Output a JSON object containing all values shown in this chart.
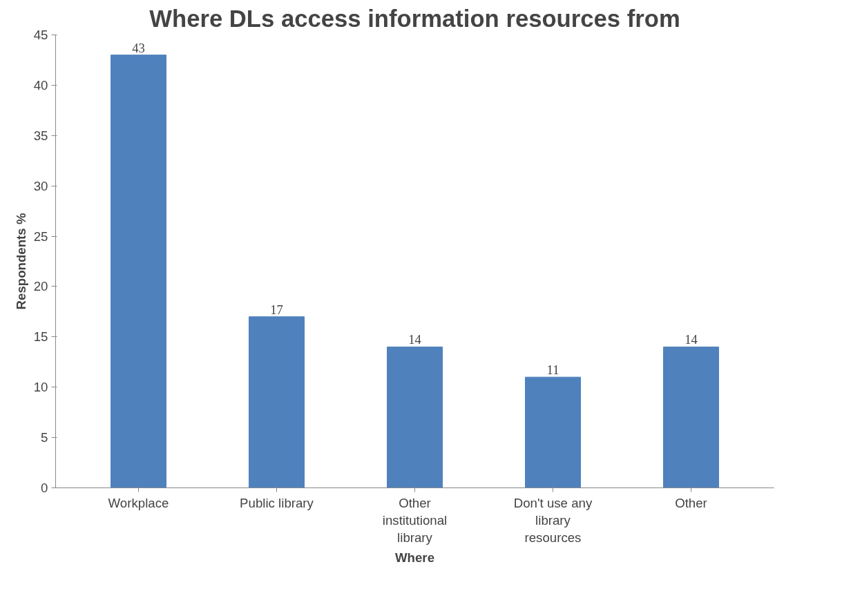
{
  "chart_data": {
    "type": "bar",
    "title": "Where DLs access information resources from",
    "xlabel": "Where",
    "ylabel": "Respondents %",
    "categories": [
      "Workplace",
      "Public library",
      "Other institutional library",
      "Don't use any library resources",
      "Other"
    ],
    "values": [
      43,
      17,
      14,
      11,
      14
    ],
    "color": "#4f81bd",
    "data_labels": true,
    "ylim": [
      0,
      45
    ],
    "yticks": [
      0,
      5,
      10,
      15,
      20,
      25,
      30,
      35,
      40,
      45
    ],
    "grid": false
  }
}
